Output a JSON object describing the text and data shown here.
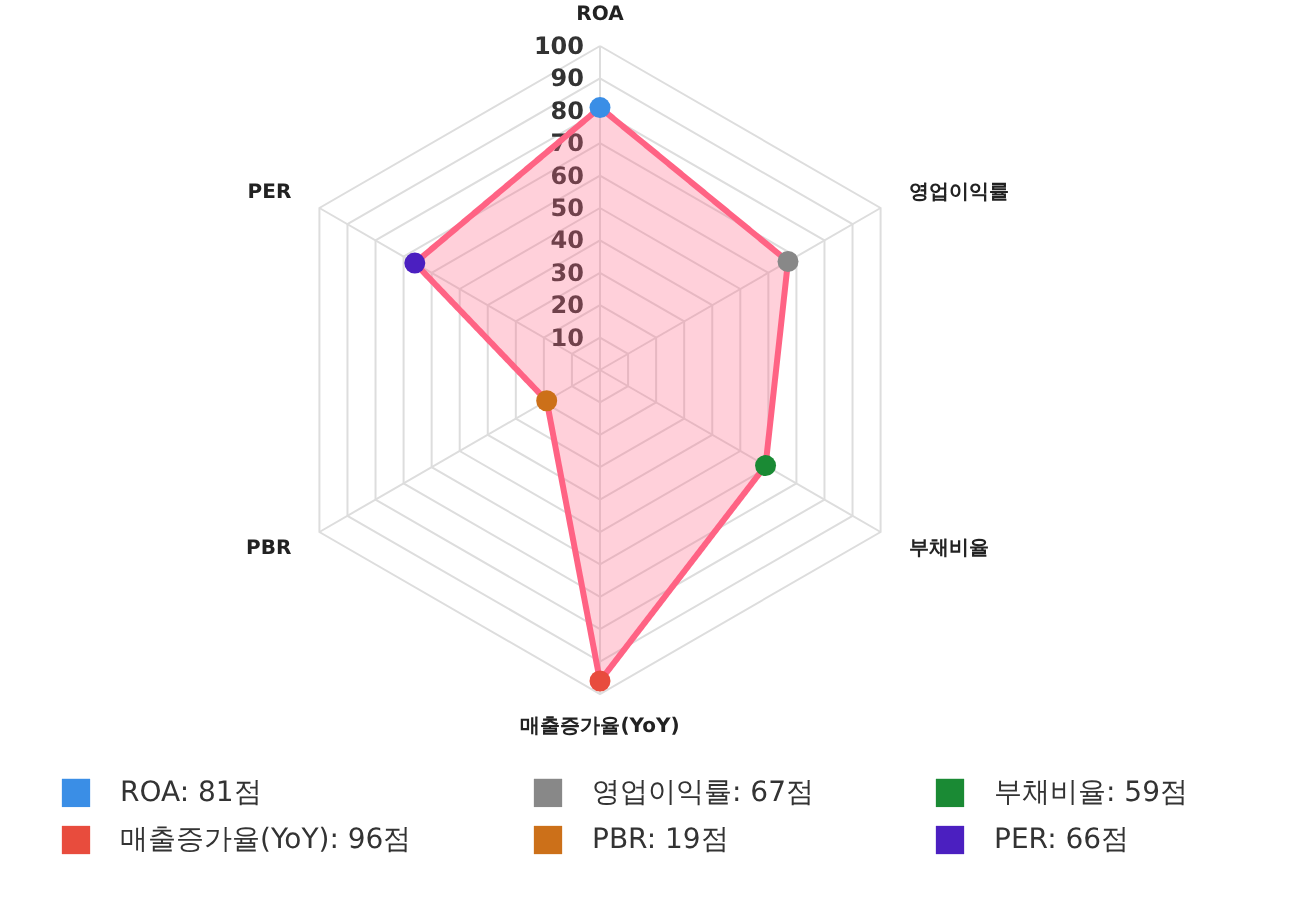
{
  "chart_data": {
    "type": "radar",
    "categories": [
      "ROA",
      "영업이익률",
      "부채비율",
      "매출증가율(YoY)",
      "PBR",
      "PER"
    ],
    "series": [
      {
        "color": "#ff6384",
        "values": [
          81,
          67,
          59,
          96,
          19,
          66
        ],
        "colors": [
          "#3a8ee6",
          "#888888",
          "#1a8a34",
          "#e84c3d",
          "#cc7019",
          "#4b1fc0"
        ]
      }
    ],
    "annotations": [
      "ROA: 81점",
      "영업이익률: 67점",
      "부채비율: 59점",
      "매출증가율(YoY): 96점",
      "PBR: 19점",
      "PER: 66점"
    ],
    "ylim": [
      0,
      100
    ],
    "yticks": [
      10,
      20,
      30,
      40,
      50,
      60,
      70,
      80,
      90,
      100
    ],
    "grid": true,
    "marker": "circle"
  }
}
